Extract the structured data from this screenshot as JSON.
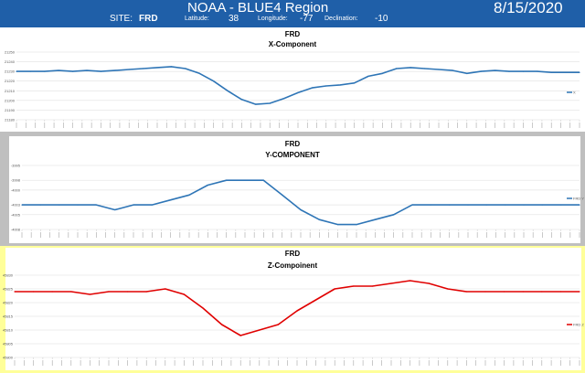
{
  "header": {
    "title": "NOAA - BLUE4 Region",
    "date": "8/15/2020",
    "site_label": "SITE:",
    "site_value": "FRD",
    "latitude_label": "Latitude:",
    "latitude_value": "38",
    "longitude_label": "Longitude:",
    "longitude_value": "-77",
    "declination_label": "Declination:",
    "declination_value": "-10"
  },
  "colors": {
    "banner": "#1f5fa8",
    "panel2_bg": "#bfbfbf",
    "panel3_bg": "#ffff99",
    "series_blue": "#2e75b6",
    "series_red": "#e00000"
  },
  "chart_data": [
    {
      "type": "line",
      "title": "FRD",
      "subtitle": "X-Component",
      "legend": "X",
      "legend_position": "right",
      "grid": true,
      "ylim": [
        21180,
        21250
      ],
      "y_ticks": [
        "21250",
        "21240",
        "21230",
        "21220",
        "21210",
        "21200",
        "21190",
        "21180"
      ],
      "series": [
        {
          "color": "#2e75b6",
          "values": [
            21230,
            21230,
            21230,
            21231,
            21230,
            21231,
            21230,
            21231,
            21232,
            21233,
            21234,
            21235,
            21233,
            21228,
            21220,
            21210,
            21201,
            21196,
            21197,
            21202,
            21208,
            21213,
            21215,
            21216,
            21218,
            21225,
            21228,
            21233,
            21234,
            21233,
            21232,
            21231,
            21228,
            21230,
            21231,
            21230,
            21230,
            21230,
            21229,
            21229,
            21229
          ]
        }
      ]
    },
    {
      "type": "line",
      "title": "FRD",
      "subtitle": "Y-COMPONENT",
      "legend": "FRD Y",
      "legend_position": "right",
      "grid": true,
      "ylim": [
        -4008,
        -3995
      ],
      "y_ticks": [
        "-3995",
        "-3998",
        "-4000",
        "-4003",
        "-4005",
        "-4008"
      ],
      "series": [
        {
          "color": "#2e75b6",
          "values": [
            -4003,
            -4003,
            -4003,
            -4003,
            -4003,
            -4004,
            -4003,
            -4003,
            -4002,
            -4001,
            -3999,
            -3998,
            -3998,
            -3998,
            -4001,
            -4004,
            -4006,
            -4007,
            -4007,
            -4006,
            -4005,
            -4003,
            -4003,
            -4003,
            -4003,
            -4003,
            -4003,
            -4003,
            -4003,
            -4003,
            -4003
          ]
        }
      ]
    },
    {
      "type": "line",
      "title": "FRD",
      "subtitle": "Z-Compoinent",
      "legend": "FRD Z",
      "legend_position": "right",
      "grid": true,
      "ylim": [
        45800,
        45830
      ],
      "y_ticks": [
        "45830",
        "45825",
        "45820",
        "45815",
        "45810",
        "45805",
        "45800"
      ],
      "series": [
        {
          "color": "#e00000",
          "values": [
            45824,
            45824,
            45824,
            45824,
            45823,
            45824,
            45824,
            45824,
            45825,
            45823,
            45818,
            45812,
            45808,
            45810,
            45812,
            45817,
            45821,
            45825,
            45826,
            45826,
            45827,
            45828,
            45827,
            45825,
            45824,
            45824,
            45824,
            45824,
            45824,
            45824,
            45824
          ]
        }
      ]
    }
  ]
}
